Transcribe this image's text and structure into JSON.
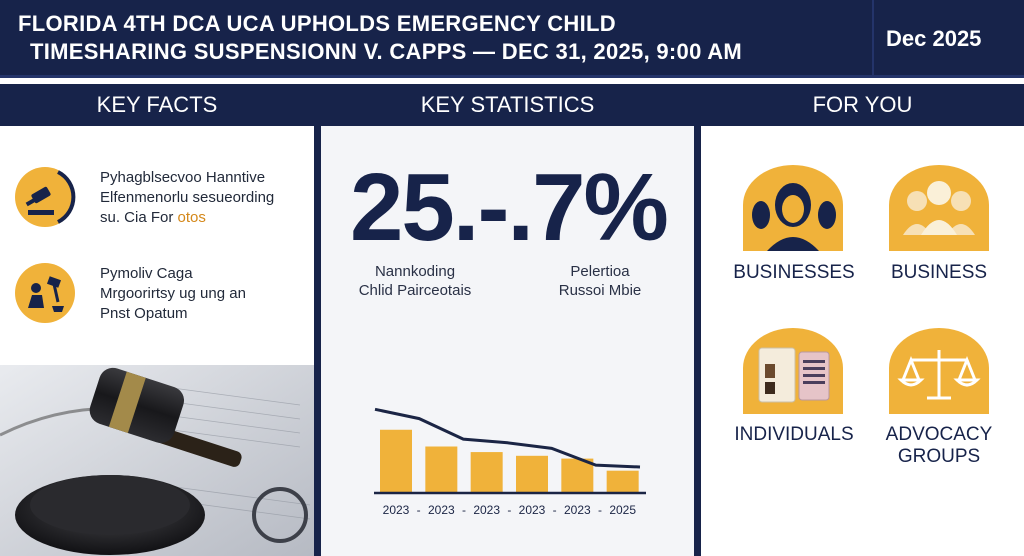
{
  "header": {
    "title_line1": "FLORIDA 4TH DCA UCA UPHOLDS EMERGENCY CHILD",
    "title_line2": "TIMESHARING SUSPENSIONN V. CAPPS — DEC 31, 2025, 9:00 AM",
    "date": "Dec 2025"
  },
  "columns": {
    "left": "KEY FACTS",
    "middle": "KEY STATISTICS",
    "right": "FOR YOU"
  },
  "facts": [
    {
      "icon": "gavel-icon",
      "lines": [
        "Pyhagblsecvoo Hanntive",
        "Elfenmenorlu sesueording"
      ],
      "line3_prefix": "su. Cia For ",
      "line3_highlight": "otos"
    },
    {
      "icon": "judge-gavel-icon",
      "lines": [
        "Pymoliv Caga",
        "Mrgoorirtsy ug ung an",
        "Pnst Opatum"
      ]
    }
  ],
  "statistic": {
    "value": "25.-.7%",
    "label_left": [
      "Nannkoding",
      "Chlid Pairceotais"
    ],
    "label_right": [
      "Pelertioa",
      "Russoi Mbie"
    ]
  },
  "chart_data": {
    "type": "bar",
    "categories": [
      "2023",
      "2023",
      "2023",
      "2023",
      "2023",
      "2025"
    ],
    "x_tick_labels": [
      "2023",
      "2023",
      "2023",
      "2023",
      "2023",
      "2025"
    ],
    "values": [
      68,
      50,
      44,
      40,
      37,
      24
    ],
    "trend_line": [
      90,
      80,
      58,
      54,
      48,
      30,
      28
    ],
    "colors": {
      "bar": "#f0b23a",
      "line": "#1b2545",
      "axis": "#1b2545"
    },
    "title": "",
    "xlabel": "",
    "ylabel": ""
  },
  "audiences": [
    {
      "label": "BUSINESSES",
      "icon": "people-silhouette-icon"
    },
    {
      "label": "BUSINESS",
      "icon": "group-icon"
    },
    {
      "label": "INDIVIDUALS",
      "icon": "documents-icon"
    },
    {
      "label_lines": [
        "ADVOCACY",
        "GROUPS"
      ],
      "icon": "scales-icon"
    }
  ],
  "colors": {
    "navy": "#17234a",
    "gold": "#f0b23a",
    "orange_text": "#d4881a"
  }
}
